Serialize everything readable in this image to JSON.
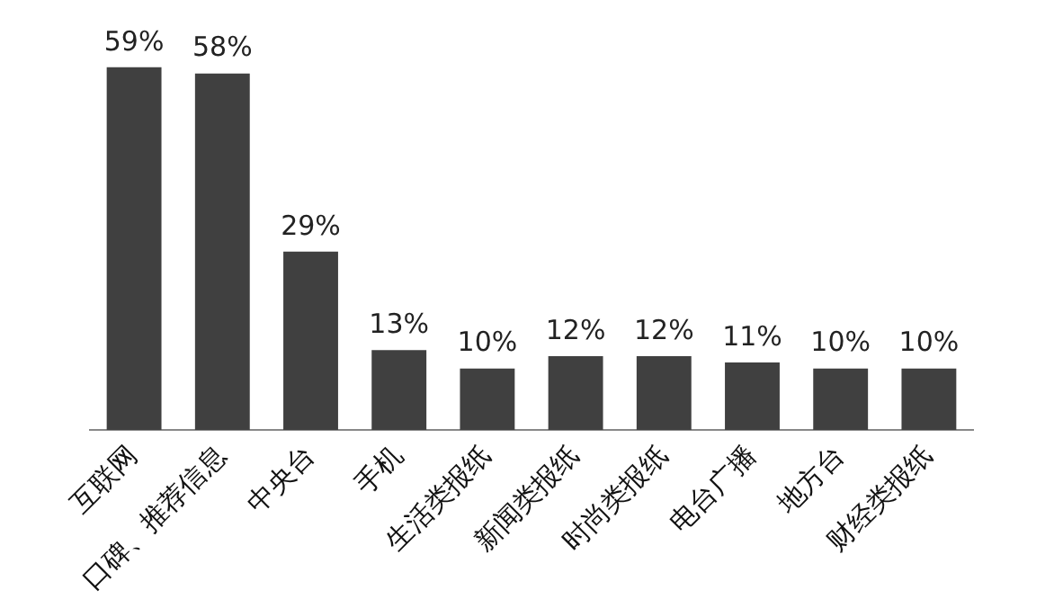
{
  "chart_data": {
    "type": "bar",
    "categories": [
      "互联网",
      "口碑、推荐信息",
      "中央台",
      "手机",
      "生活类报纸",
      "新闻类报纸",
      "时尚类报纸",
      "电台广播",
      "地方台",
      "财经类报纸"
    ],
    "values": [
      59,
      58,
      29,
      13,
      10,
      12,
      12,
      11,
      10,
      10
    ],
    "value_labels": [
      "59%",
      "58%",
      "29%",
      "13%",
      "10%",
      "12%",
      "12%",
      "11%",
      "10%",
      "10%"
    ],
    "color": "#404040",
    "grid": false,
    "legend": false
  }
}
